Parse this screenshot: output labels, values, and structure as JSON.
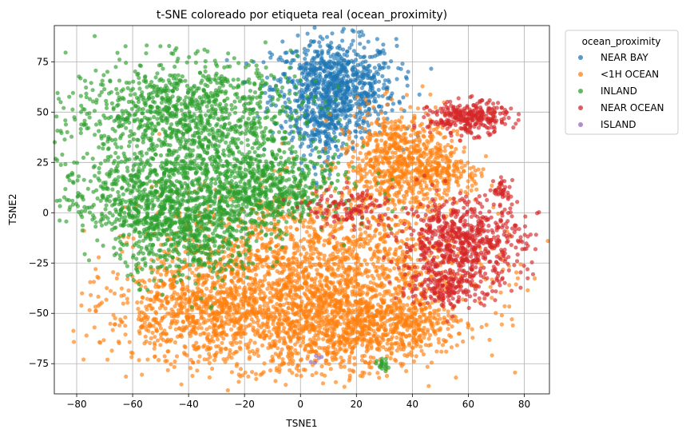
{
  "chart_data": {
    "type": "scatter",
    "title": "t-SNE coloreado por etiqueta real (ocean_proximity)",
    "xlabel": "TSNE1",
    "ylabel": "TSNE2",
    "xlim": [
      -88,
      89
    ],
    "ylim": [
      -90,
      93
    ],
    "xticks": [
      -80,
      -60,
      -40,
      -20,
      0,
      20,
      40,
      60,
      80
    ],
    "yticks": [
      -75,
      -50,
      -25,
      0,
      25,
      50,
      75
    ],
    "grid": true,
    "legend": {
      "title": "ocean_proximity",
      "placement": "outside-right-top"
    },
    "series": [
      {
        "name": "NEAR BAY",
        "color": "#1f77b4",
        "clusters": [
          {
            "cx": 12,
            "cy": 62,
            "sx": 11,
            "sy": 12,
            "n": 900
          },
          {
            "cx": 8,
            "cy": 40,
            "sx": 5,
            "sy": 8,
            "n": 150
          }
        ]
      },
      {
        "name": "<1H OCEAN",
        "color": "#ff7f0e",
        "clusters": [
          {
            "cx": 35,
            "cy": 25,
            "sx": 10,
            "sy": 13,
            "n": 700
          },
          {
            "cx": 52,
            "cy": 20,
            "sx": 6,
            "sy": 8,
            "n": 150
          },
          {
            "cx": 5,
            "cy": -25,
            "sx": 28,
            "sy": 18,
            "n": 1500
          },
          {
            "cx": -30,
            "cy": -50,
            "sx": 20,
            "sy": 13,
            "n": 1000
          },
          {
            "cx": 15,
            "cy": -57,
            "sx": 17,
            "sy": 12,
            "n": 800
          },
          {
            "cx": 35,
            "cy": -55,
            "sx": 12,
            "sy": 7,
            "n": 300
          }
        ]
      },
      {
        "name": "INLAND",
        "color": "#2ca02c",
        "clusters": [
          {
            "cx": -42,
            "cy": 52,
            "sx": 20,
            "sy": 12,
            "n": 900
          },
          {
            "cx": -30,
            "cy": 20,
            "sx": 22,
            "sy": 13,
            "n": 900
          },
          {
            "cx": -60,
            "cy": 5,
            "sx": 13,
            "sy": 10,
            "n": 350
          },
          {
            "cx": -40,
            "cy": -10,
            "sx": 13,
            "sy": 12,
            "n": 600
          },
          {
            "cx": -10,
            "cy": 8,
            "sx": 10,
            "sy": 8,
            "n": 300
          },
          {
            "cx": 30,
            "cy": -76,
            "sx": 1.2,
            "sy": 1.5,
            "n": 20
          }
        ]
      },
      {
        "name": "NEAR OCEAN",
        "color": "#d62728",
        "clusters": [
          {
            "cx": 60,
            "cy": 47,
            "sx": 7,
            "sy": 4,
            "n": 300
          },
          {
            "cx": 58,
            "cy": -15,
            "sx": 11,
            "sy": 11,
            "n": 700
          },
          {
            "cx": 52,
            "cy": -37,
            "sx": 7,
            "sy": 5,
            "n": 150
          },
          {
            "cx": 72,
            "cy": 11,
            "sx": 1.5,
            "sy": 3,
            "n": 40
          },
          {
            "cx": 18,
            "cy": 2,
            "sx": 8,
            "sy": 5,
            "n": 120
          }
        ]
      },
      {
        "name": "ISLAND",
        "color": "#9467bd",
        "clusters": [
          {
            "cx": 6,
            "cy": -73,
            "sx": 1.5,
            "sy": 1.5,
            "n": 5
          }
        ]
      }
    ]
  }
}
